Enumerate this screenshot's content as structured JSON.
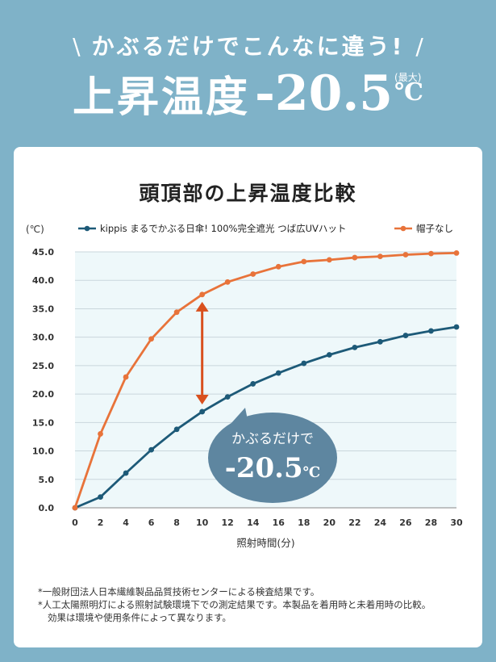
{
  "banner": {
    "tagline": "かぶるだけでこんなに違う!",
    "headline_label": "上昇温度",
    "headline_value": "-20.5",
    "headline_unit": "℃",
    "headline_note": "(最大)"
  },
  "card": {
    "title": "頭頂部の上昇温度比較",
    "footnotes": [
      "*一般財団法人日本繊維製品品質技術センターによる検査結果です。",
      "*人工太陽照明灯による照射試験環境下での測定結果です。本製品を着用時と未着用時の比較。",
      "効果は環境や使用条件によって異なります。"
    ]
  },
  "callout": {
    "line1": "かぶるだけで",
    "value": "-20.5",
    "unit": "℃"
  },
  "chart_data": {
    "type": "line",
    "ylabel": "(℃)",
    "xlabel": "照射時間(分)",
    "x": [
      0,
      2,
      4,
      6,
      8,
      10,
      12,
      14,
      16,
      18,
      20,
      22,
      24,
      26,
      28,
      30
    ],
    "ylim": [
      0,
      45
    ],
    "xlim": [
      0,
      30
    ],
    "yticks": [
      "0.0",
      "5.0",
      "10.0",
      "15.0",
      "20.0",
      "25.0",
      "30.0",
      "35.0",
      "40.0",
      "45.0"
    ],
    "grid": true,
    "legend_position": "top",
    "series": [
      {
        "name": "kippis まるでかぶる日傘! 100%完全遮光 つば広UVハット",
        "color": "#1d5a78",
        "values": [
          0.0,
          1.9,
          6.1,
          10.2,
          13.8,
          16.9,
          19.5,
          21.8,
          23.7,
          25.4,
          26.9,
          28.2,
          29.2,
          30.3,
          31.1,
          31.8
        ]
      },
      {
        "name": "帽子なし",
        "color": "#e8733a",
        "values": [
          0.0,
          13.0,
          23.0,
          29.7,
          34.4,
          37.5,
          39.7,
          41.1,
          42.4,
          43.3,
          43.6,
          44.0,
          44.2,
          44.5,
          44.7,
          44.8
        ]
      }
    ],
    "annotation": {
      "type": "double-arrow",
      "x": 10,
      "y_from": 16.9,
      "y_to": 37.5,
      "color": "#d9501e"
    }
  }
}
